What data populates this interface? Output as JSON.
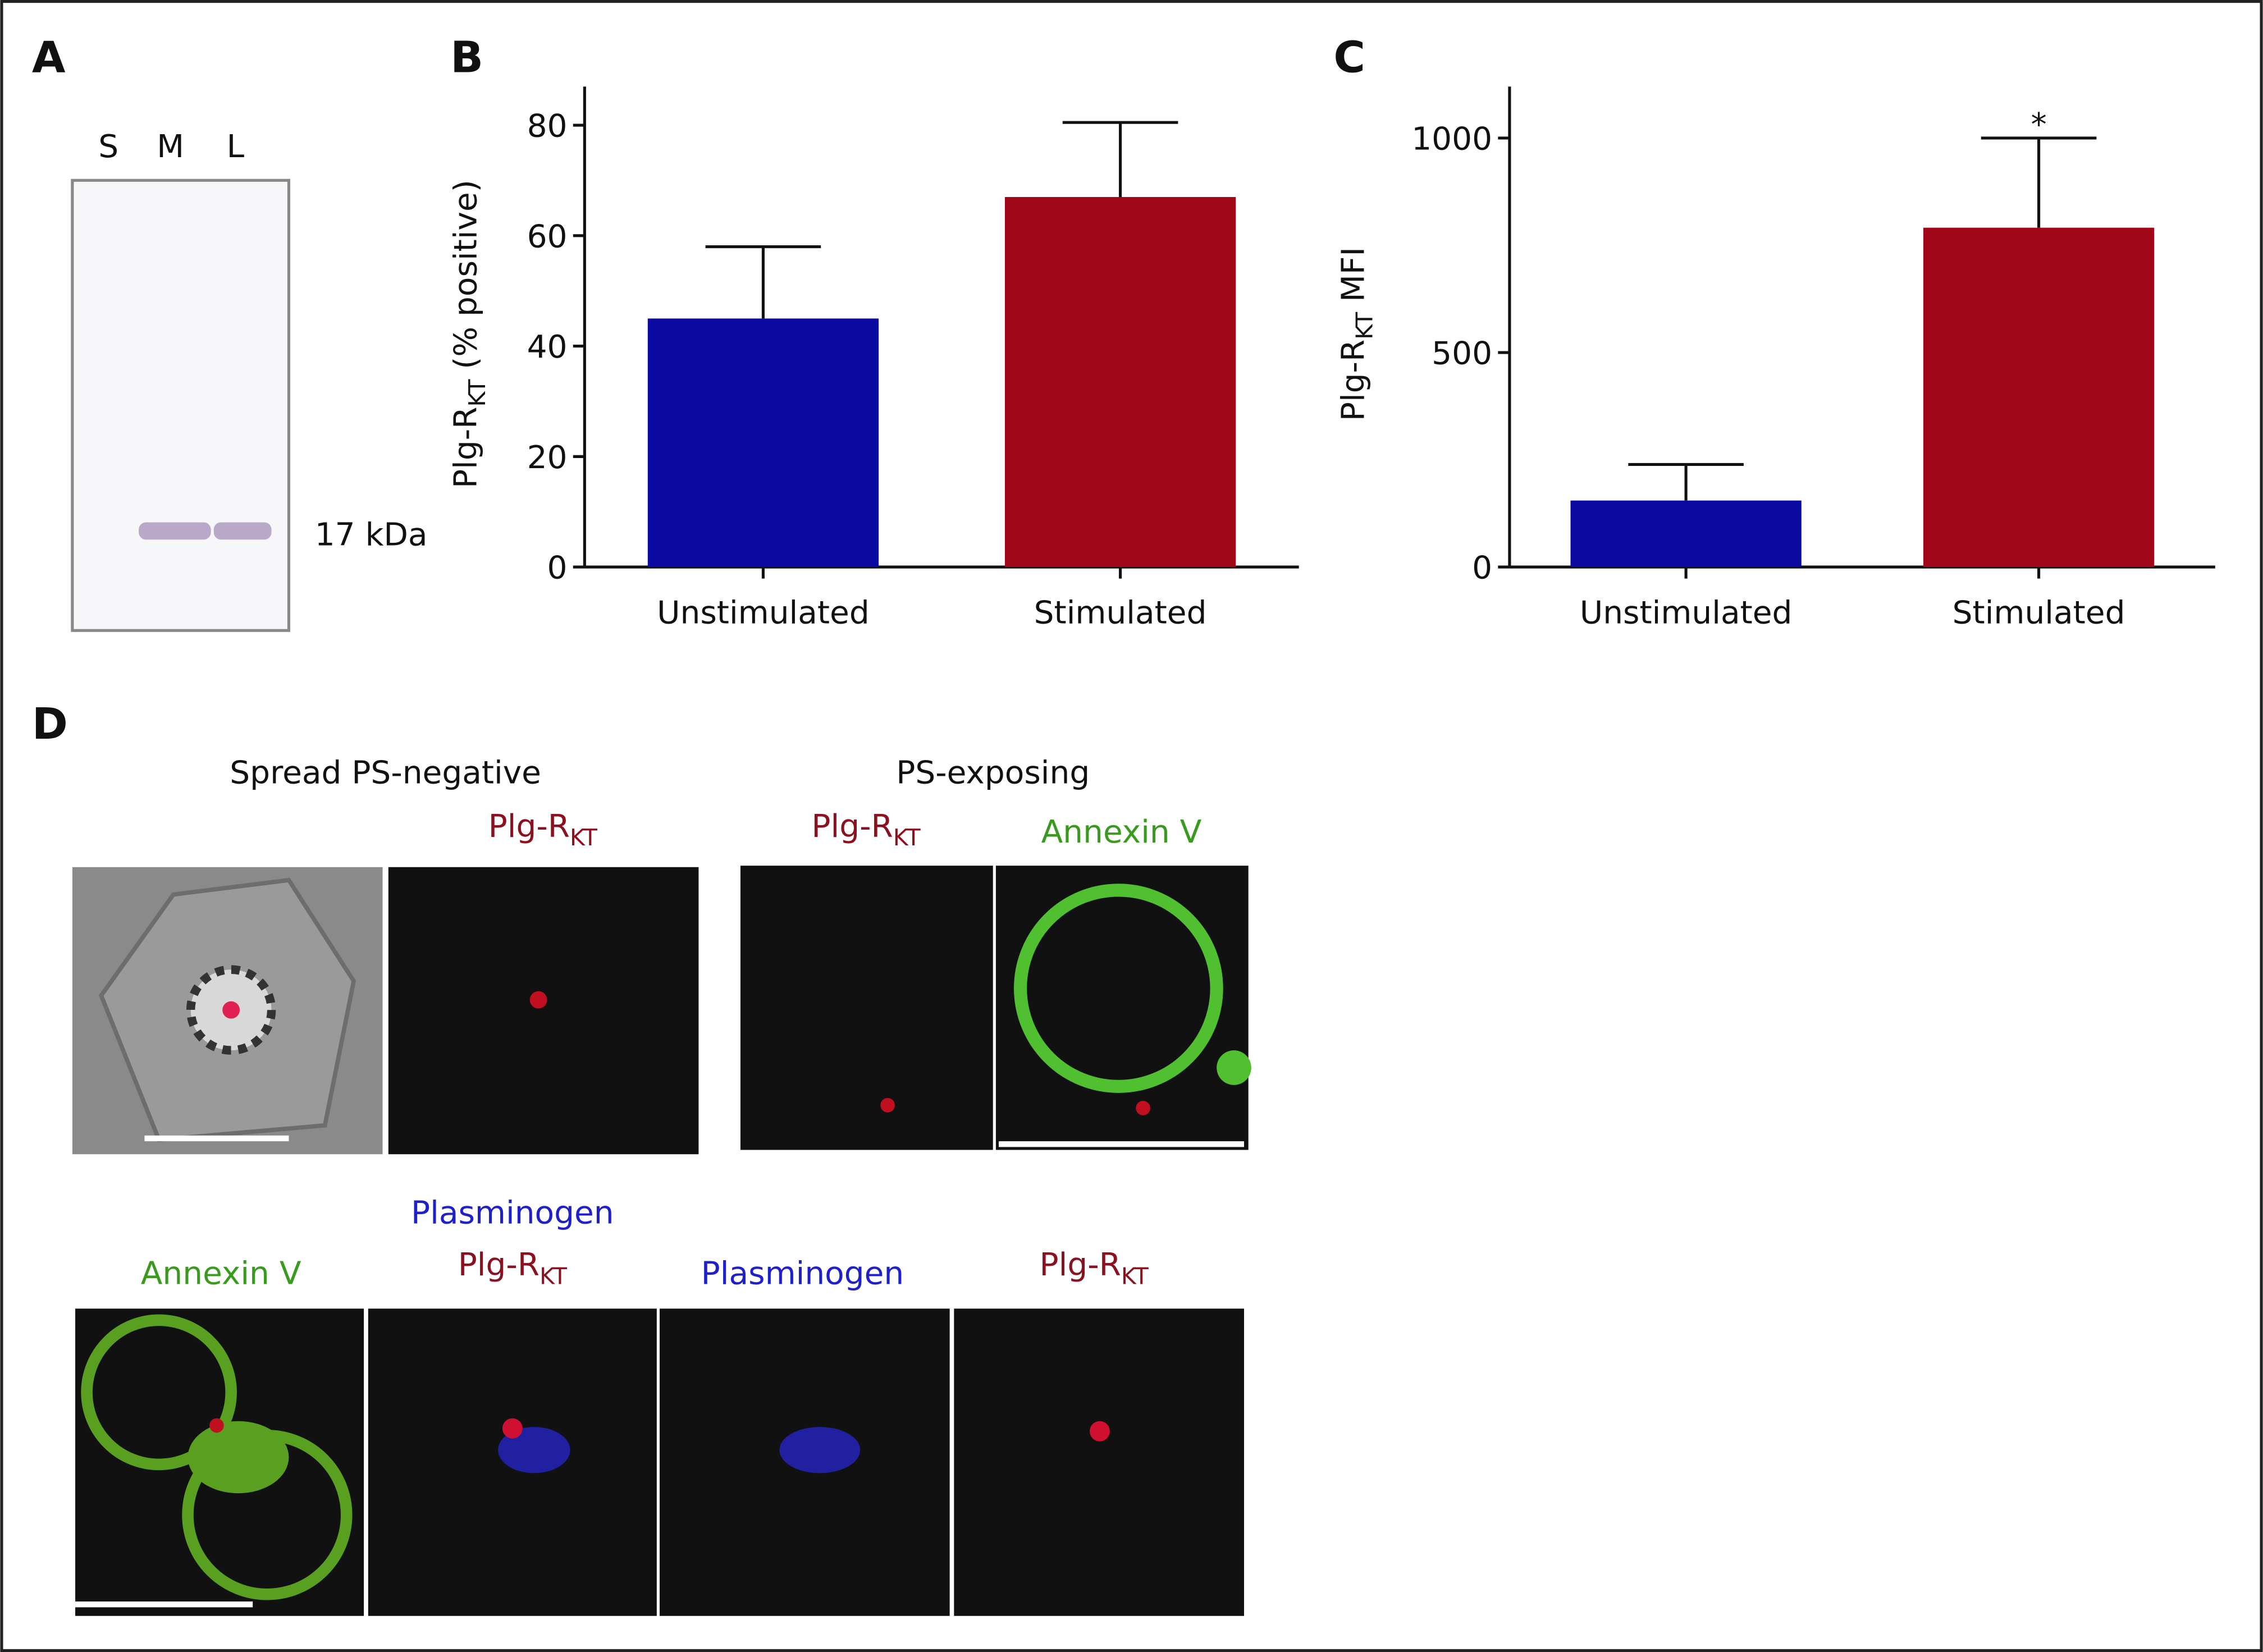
{
  "chart_data": [
    {
      "type": "bar",
      "ylabel": [
        "Plg-R",
        "KT",
        " (% positive)"
      ],
      "categories": [
        "Unstimulated",
        "Stimulated"
      ],
      "values": [
        45,
        67
      ],
      "errors": [
        13,
        13.5
      ],
      "colors": [
        "#0a0aa0",
        "#a0081a"
      ],
      "ylim": [
        0,
        87
      ],
      "yticks": [
        0,
        20,
        40,
        60,
        80
      ]
    },
    {
      "type": "bar",
      "ylabel": [
        "Plg-R",
        "KT",
        " MFI"
      ],
      "categories": [
        "Unstimulated",
        "Stimulated"
      ],
      "values": [
        155,
        791
      ],
      "errors": [
        84,
        209
      ],
      "colors": [
        "#0a0aa0",
        "#a0081a"
      ],
      "ylim": [
        0,
        1120
      ],
      "yticks": [
        0,
        500,
        1000
      ],
      "annotation": "*"
    }
  ],
  "figure": {
    "panels": [
      "A",
      "B",
      "C",
      "D"
    ],
    "blot": {
      "lanes": [
        "S",
        "M",
        "L"
      ],
      "marker": "17 kDa"
    },
    "microscopy": {
      "titles": [
        "Spread PS-negative",
        "PS-exposing"
      ],
      "plg": [
        "Plg-R",
        "KT"
      ],
      "annexin": "Annexin V",
      "plasminogen": "Plasminogen"
    }
  }
}
